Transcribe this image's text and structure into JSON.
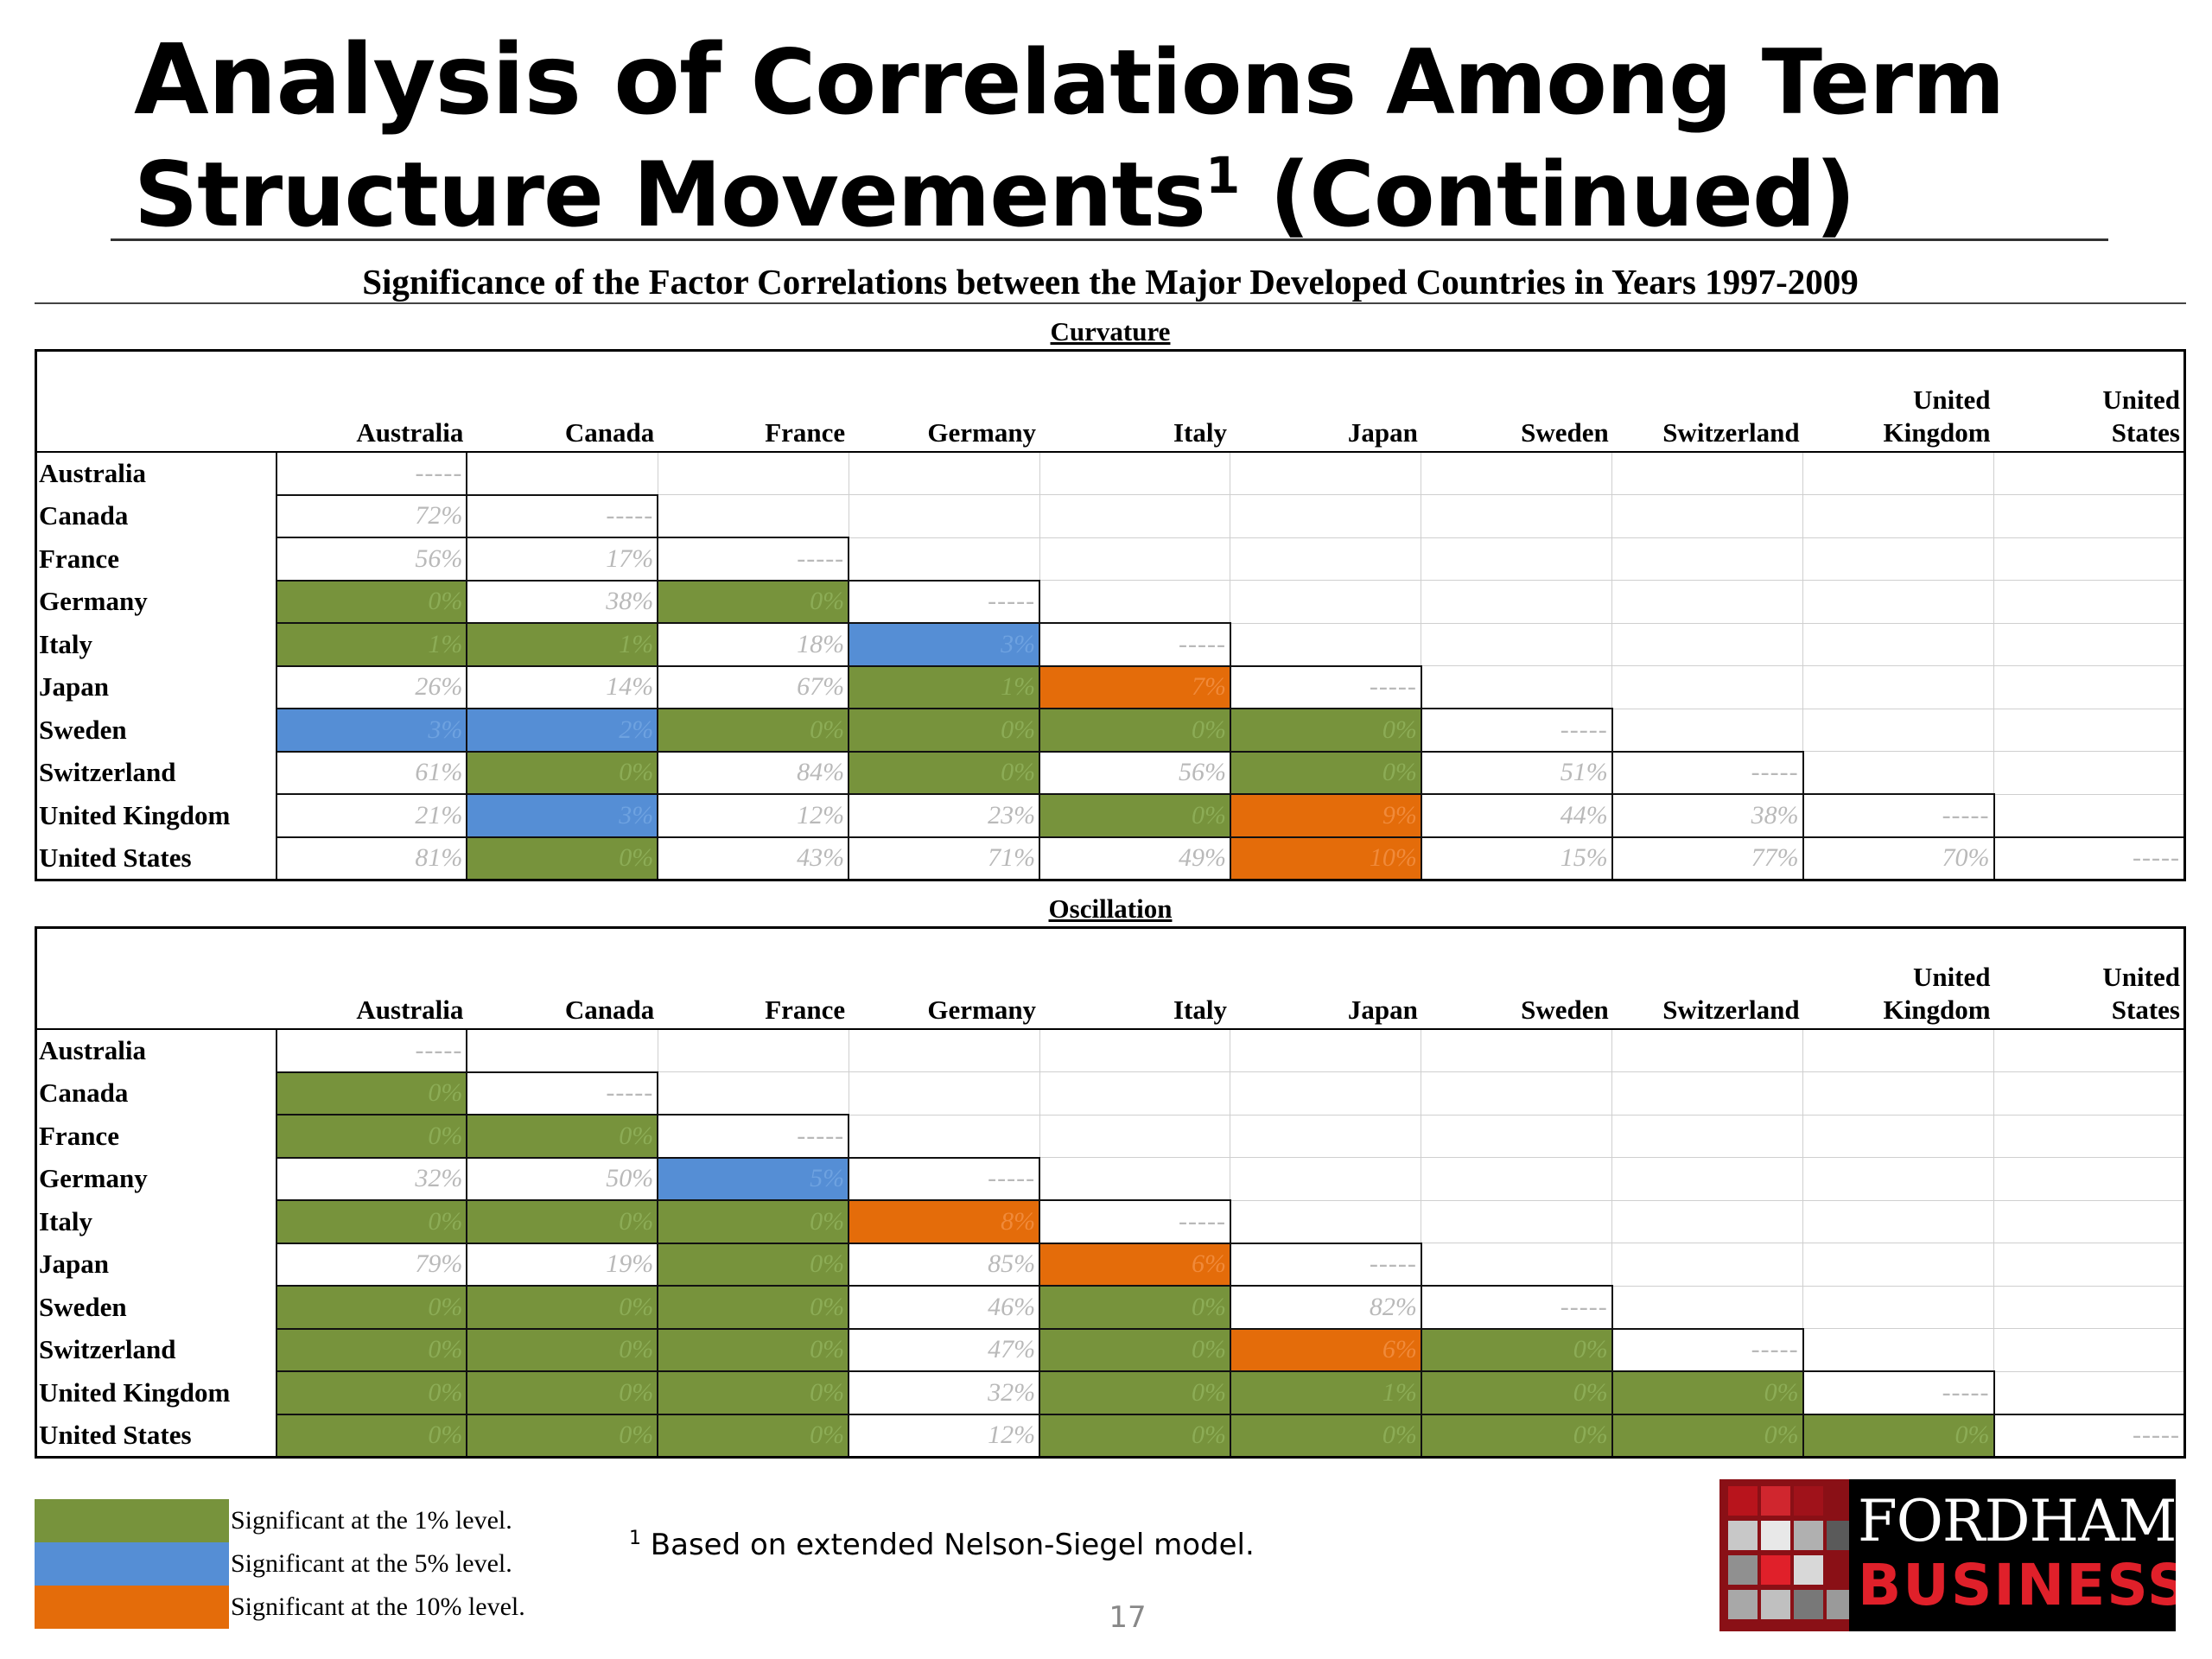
{
  "title": {
    "part1": "Analysis of",
    "part2": " Correlations Among Term",
    "line2": "Structure Movements",
    "sup": "1",
    "suffix": " (Continued)"
  },
  "subtitle": "Significance of the Factor Correlations between the Major Developed Countries in Years 1997-2009",
  "columns": [
    [
      "Australia"
    ],
    [
      "Canada"
    ],
    [
      "France"
    ],
    [
      "Germany"
    ],
    [
      "Italy"
    ],
    [
      "Japan"
    ],
    [
      "Sweden"
    ],
    [
      "Switzerland"
    ],
    [
      "United",
      "Kingdom"
    ],
    [
      "United",
      "States"
    ]
  ],
  "rows": [
    "Australia",
    "Canada",
    "France",
    "Germany",
    "Italy",
    "Japan",
    "Sweden",
    "Switzerland",
    "United Kingdom",
    "United States"
  ],
  "panels": [
    {
      "label": "Curvature",
      "cells": [
        [
          [
            "-----",
            ""
          ]
        ],
        [
          [
            "72%",
            ""
          ],
          [
            "-----",
            ""
          ]
        ],
        [
          [
            "56%",
            ""
          ],
          [
            "17%",
            ""
          ],
          [
            "-----",
            ""
          ]
        ],
        [
          [
            "0%",
            "1"
          ],
          [
            "38%",
            ""
          ],
          [
            "0%",
            "1"
          ],
          [
            "-----",
            ""
          ]
        ],
        [
          [
            "1%",
            "1"
          ],
          [
            "1%",
            "1"
          ],
          [
            "18%",
            ""
          ],
          [
            "3%",
            "5"
          ],
          [
            "-----",
            ""
          ]
        ],
        [
          [
            "26%",
            ""
          ],
          [
            "14%",
            ""
          ],
          [
            "67%",
            ""
          ],
          [
            "1%",
            "1"
          ],
          [
            "7%",
            "10"
          ],
          [
            "-----",
            ""
          ]
        ],
        [
          [
            "3%",
            "5"
          ],
          [
            "2%",
            "5"
          ],
          [
            "0%",
            "1"
          ],
          [
            "0%",
            "1"
          ],
          [
            "0%",
            "1"
          ],
          [
            "0%",
            "1"
          ],
          [
            "-----",
            ""
          ]
        ],
        [
          [
            "61%",
            ""
          ],
          [
            "0%",
            "1"
          ],
          [
            "84%",
            ""
          ],
          [
            "0%",
            "1"
          ],
          [
            "56%",
            ""
          ],
          [
            "0%",
            "1"
          ],
          [
            "51%",
            ""
          ],
          [
            "-----",
            ""
          ]
        ],
        [
          [
            "21%",
            ""
          ],
          [
            "3%",
            "5"
          ],
          [
            "12%",
            ""
          ],
          [
            "23%",
            ""
          ],
          [
            "0%",
            "1"
          ],
          [
            "9%",
            "10"
          ],
          [
            "44%",
            ""
          ],
          [
            "38%",
            ""
          ],
          [
            "-----",
            ""
          ]
        ],
        [
          [
            "81%",
            ""
          ],
          [
            "0%",
            "1"
          ],
          [
            "43%",
            ""
          ],
          [
            "71%",
            ""
          ],
          [
            "49%",
            ""
          ],
          [
            "10%",
            "10"
          ],
          [
            "15%",
            ""
          ],
          [
            "77%",
            ""
          ],
          [
            "70%",
            ""
          ],
          [
            "-----",
            ""
          ]
        ]
      ]
    },
    {
      "label": "Oscillation",
      "cells": [
        [
          [
            "-----",
            ""
          ]
        ],
        [
          [
            "0%",
            "1"
          ],
          [
            "-----",
            ""
          ]
        ],
        [
          [
            "0%",
            "1"
          ],
          [
            "0%",
            "1"
          ],
          [
            "-----",
            ""
          ]
        ],
        [
          [
            "32%",
            ""
          ],
          [
            "50%",
            ""
          ],
          [
            "5%",
            "5"
          ],
          [
            "-----",
            ""
          ]
        ],
        [
          [
            "0%",
            "1"
          ],
          [
            "0%",
            "1"
          ],
          [
            "0%",
            "1"
          ],
          [
            "8%",
            "10"
          ],
          [
            "-----",
            ""
          ]
        ],
        [
          [
            "79%",
            ""
          ],
          [
            "19%",
            ""
          ],
          [
            "0%",
            "1"
          ],
          [
            "85%",
            ""
          ],
          [
            "6%",
            "10"
          ],
          [
            "-----",
            ""
          ]
        ],
        [
          [
            "0%",
            "1"
          ],
          [
            "0%",
            "1"
          ],
          [
            "0%",
            "1"
          ],
          [
            "46%",
            ""
          ],
          [
            "0%",
            "1"
          ],
          [
            "82%",
            ""
          ],
          [
            "-----",
            ""
          ]
        ],
        [
          [
            "0%",
            "1"
          ],
          [
            "0%",
            "1"
          ],
          [
            "0%",
            "1"
          ],
          [
            "47%",
            ""
          ],
          [
            "0%",
            "1"
          ],
          [
            "6%",
            "10"
          ],
          [
            "0%",
            "1"
          ],
          [
            "-----",
            ""
          ]
        ],
        [
          [
            "0%",
            "1"
          ],
          [
            "0%",
            "1"
          ],
          [
            "0%",
            "1"
          ],
          [
            "32%",
            ""
          ],
          [
            "0%",
            "1"
          ],
          [
            "1%",
            "1"
          ],
          [
            "0%",
            "1"
          ],
          [
            "0%",
            "1"
          ],
          [
            "-----",
            ""
          ]
        ],
        [
          [
            "0%",
            "1"
          ],
          [
            "0%",
            "1"
          ],
          [
            "0%",
            "1"
          ],
          [
            "12%",
            ""
          ],
          [
            "0%",
            "1"
          ],
          [
            "0%",
            "1"
          ],
          [
            "0%",
            "1"
          ],
          [
            "0%",
            "1"
          ],
          [
            "0%",
            "1"
          ],
          [
            "-----",
            ""
          ]
        ]
      ]
    }
  ],
  "legend": [
    {
      "text": "Significant at the 1% level.",
      "color": "#77933c"
    },
    {
      "text": "Significant at the 5% level.",
      "color": "#558ed5"
    },
    {
      "text": "Significant at the 10% level.",
      "color": "#e46c0a"
    }
  ],
  "footnote": {
    "sup": "1",
    "text": " Based on extended Nelson-Siegel model."
  },
  "page_number": "17",
  "logo": {
    "line1": "FORDHAM",
    "line2": "BUSINESS"
  }
}
